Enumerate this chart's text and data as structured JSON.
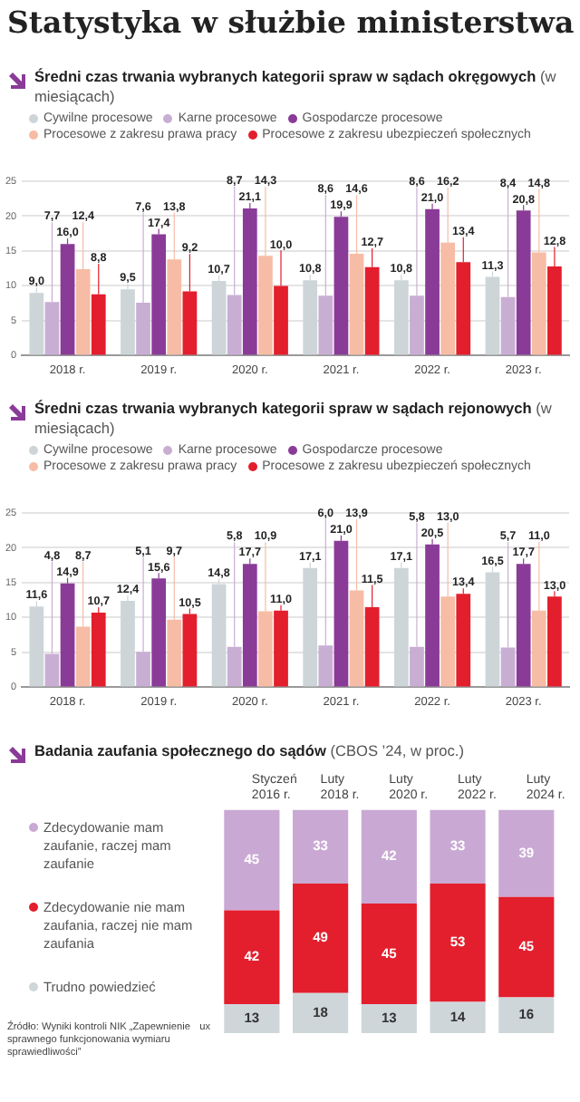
{
  "chart_data": [
    {
      "type": "other",
      "title": "Statystyka w służbie ministerstwa"
    },
    {
      "type": "bar",
      "title": "Średni czas trwania wybranych kategorii spraw w sądach okręgowych",
      "subtitle": "(w miesiącach)",
      "categories": [
        "2018 r.",
        "2019 r.",
        "2020 r.",
        "2021 r.",
        "2022 r.",
        "2023 r."
      ],
      "series": [
        {
          "name": "Cywilne procesowe",
          "color": "#cdd5d9",
          "values": [
            9.0,
            9.5,
            10.7,
            10.8,
            10.8,
            11.3
          ],
          "value_labels": [
            "9,0",
            "9,5",
            "10,7",
            "10,8",
            "10,8",
            "11,3"
          ]
        },
        {
          "name": "Karne procesowe",
          "color": "#c9aed4",
          "values": [
            7.7,
            7.6,
            8.7,
            8.6,
            8.6,
            8.4
          ],
          "value_labels": [
            "7,7",
            "7,6",
            "8,7",
            "8,6",
            "8,6",
            "8,4"
          ]
        },
        {
          "name": "Gospodarcze procesowe",
          "color": "#8a3b97",
          "values": [
            16.0,
            17.4,
            21.1,
            19.9,
            21.0,
            20.8
          ],
          "value_labels": [
            "16,0",
            "17,4",
            "21,1",
            "19,9",
            "21,0",
            "20,8"
          ]
        },
        {
          "name": "Procesowe z zakresu prawa pracy",
          "color": "#f7bca5",
          "values": [
            12.4,
            13.8,
            14.3,
            14.6,
            16.2,
            14.8
          ],
          "value_labels": [
            "12,4",
            "13,8",
            "14,3",
            "14,6",
            "16,2",
            "14,8"
          ]
        },
        {
          "name": "Procesowe z zakresu ubezpieczeń społecznych",
          "color": "#e31e2d",
          "values": [
            8.8,
            9.2,
            10.0,
            12.7,
            13.4,
            12.8
          ],
          "value_labels": [
            "8,8",
            "9,2",
            "10,0",
            "12,7",
            "13,4",
            "12,8"
          ]
        }
      ],
      "ylim": [
        0,
        25
      ],
      "yticks": [
        0,
        5,
        10,
        15,
        20,
        25
      ],
      "grid": "y",
      "legend": "top left"
    },
    {
      "type": "bar",
      "title": "Średni czas trwania wybranych kategorii spraw w sądach rejonowych",
      "subtitle": "(w miesiącach)",
      "categories": [
        "2018 r.",
        "2019 r.",
        "2020 r.",
        "2021 r.",
        "2022 r.",
        "2023 r."
      ],
      "series": [
        {
          "name": "Cywilne procesowe",
          "color": "#cdd5d9",
          "values": [
            11.6,
            12.4,
            14.8,
            17.1,
            17.1,
            16.5
          ],
          "value_labels": [
            "11,6",
            "12,4",
            "14,8",
            "17,1",
            "17,1",
            "16,5"
          ]
        },
        {
          "name": "Karne procesowe",
          "color": "#c9aed4",
          "values": [
            4.8,
            5.1,
            5.8,
            6.0,
            5.8,
            5.7
          ],
          "value_labels": [
            "4,8",
            "5,1",
            "5,8",
            "6,0",
            "5,8",
            "5,7"
          ]
        },
        {
          "name": "Gospodarcze procesowe",
          "color": "#8a3b97",
          "values": [
            14.9,
            15.6,
            17.7,
            21.0,
            20.5,
            17.7
          ],
          "value_labels": [
            "14,9",
            "15,6",
            "17,7",
            "21,0",
            "20,5",
            "17,7"
          ]
        },
        {
          "name": "Procesowe z zakresu prawa pracy",
          "color": "#f7bca5",
          "values": [
            8.7,
            9.7,
            10.9,
            13.9,
            13.0,
            11.0
          ],
          "value_labels": [
            "8,7",
            "9,7",
            "10,9",
            "13,9",
            "13,0",
            "11,0"
          ]
        },
        {
          "name": "Procesowe z zakresu ubezpieczeń społecznych",
          "color": "#e31e2d",
          "values": [
            10.7,
            10.5,
            11.0,
            11.5,
            13.4,
            13.0
          ],
          "value_labels": [
            "10,7",
            "10,5",
            "11,0",
            "11,5",
            "13,4",
            "13,0"
          ]
        }
      ],
      "ylim": [
        0,
        25
      ],
      "yticks": [
        0,
        5,
        10,
        15,
        20,
        25
      ],
      "grid": "y",
      "legend": "top left"
    },
    {
      "type": "bar",
      "stacked": true,
      "title": "Badania zaufania społecznego do sądów",
      "subtitle": "(CBOS ’24, w proc.)",
      "categories": [
        "Styczeń 2016 r.",
        "Luty 2018 r.",
        "Luty 2020 r.",
        "Luty 2022 r.",
        "Luty 2024 r."
      ],
      "series": [
        {
          "name": "Trudno powiedzieć",
          "color": "#cfd6da",
          "values": [
            13,
            18,
            13,
            14,
            16
          ]
        },
        {
          "name": "Zdecydowanie nie mam zaufania, raczej nie mam zaufania",
          "color": "#e31e2d",
          "values": [
            42,
            49,
            45,
            53,
            45
          ]
        },
        {
          "name": "Zdecydowanie mam zaufanie, raczej mam zaufanie",
          "color": "#c9a9d3",
          "values": [
            45,
            33,
            42,
            33,
            39
          ]
        }
      ],
      "data_labels": true,
      "tick_labels": "x",
      "legend": "left",
      "annotations": [
        "Źródło: Wyniki kontroli NIK „Zapewnienie sprawnego funkcjonowania wymiaru sprawiedliwości”",
        "ux"
      ]
    }
  ]
}
